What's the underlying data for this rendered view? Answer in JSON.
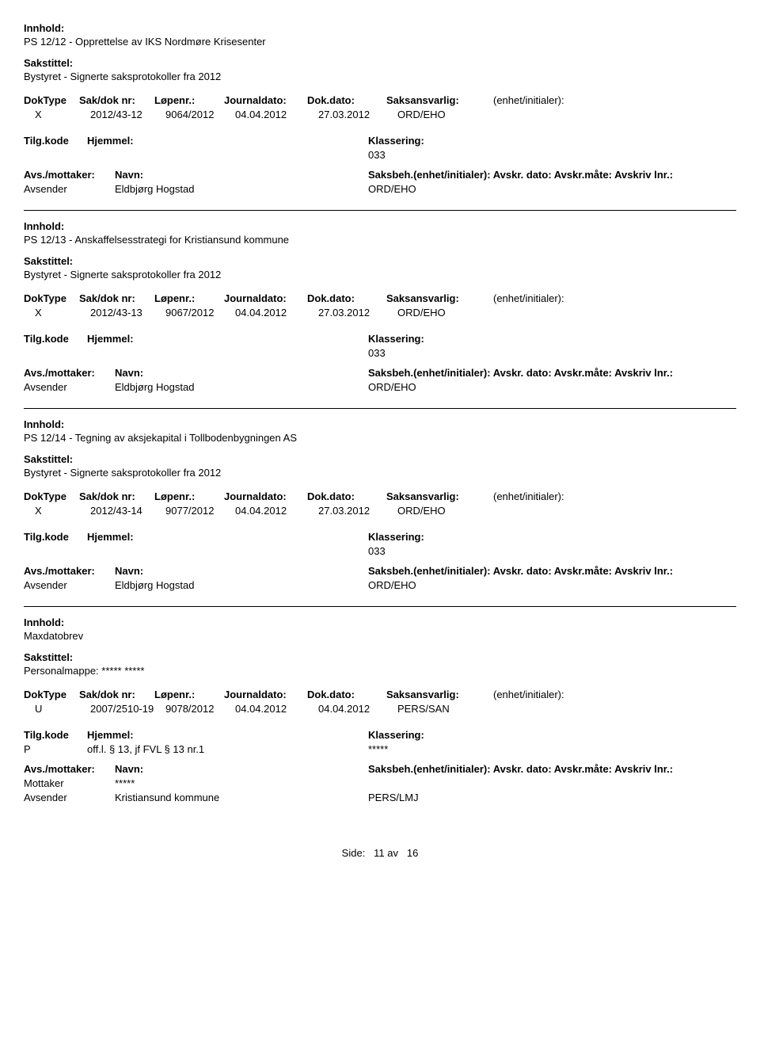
{
  "labels": {
    "innhold": "Innhold:",
    "sakstittel": "Sakstittel:",
    "doktype": "DokType",
    "sakdoknr": "Sak/dok nr:",
    "lopenr": "Løpenr.:",
    "journaldato": "Journaldato:",
    "dokdato": "Dok.dato:",
    "saksansvarlig": "Saksansvarlig:",
    "enhet_init": "(enhet/initialer):",
    "tilgkode": "Tilg.kode",
    "hjemmel": "Hjemmel:",
    "klassering": "Klassering:",
    "avsmottaker": "Avs./mottaker:",
    "navn": "Navn:",
    "saksbeh_line": "Saksbeh.(enhet/initialer): Avskr. dato:  Avskr.måte:  Avskriv lnr.:",
    "side": "Side:",
    "av": "av"
  },
  "records": [
    {
      "innhold": "PS 12/12 - Opprettelse av IKS Nordmøre Krisesenter",
      "sakstittel": "Bystyret - Signerte saksprotokoller fra 2012",
      "doktype": "X",
      "sakdoknr": "2012/43-12",
      "lopenr": "9064/2012",
      "journaldato": "04.04.2012",
      "dokdato": "27.03.2012",
      "saksansvarlig": "ORD/EHO",
      "enhet_init": "",
      "tilgkode": "",
      "hjemmel": "",
      "klassering": "033",
      "parties": [
        {
          "role": "Avsender",
          "name": "Eldbjørg Hogstad",
          "saksbeh": "ORD/EHO"
        }
      ]
    },
    {
      "innhold": "PS 12/13 - Anskaffelsesstrategi for Kristiansund kommune",
      "sakstittel": "Bystyret - Signerte saksprotokoller fra 2012",
      "doktype": "X",
      "sakdoknr": "2012/43-13",
      "lopenr": "9067/2012",
      "journaldato": "04.04.2012",
      "dokdato": "27.03.2012",
      "saksansvarlig": "ORD/EHO",
      "enhet_init": "",
      "tilgkode": "",
      "hjemmel": "",
      "klassering": "033",
      "parties": [
        {
          "role": "Avsender",
          "name": "Eldbjørg Hogstad",
          "saksbeh": "ORD/EHO"
        }
      ]
    },
    {
      "innhold": "PS 12/14 - Tegning av aksjekapital i Tollbodenbygningen AS",
      "sakstittel": "Bystyret - Signerte saksprotokoller fra 2012",
      "doktype": "X",
      "sakdoknr": "2012/43-14",
      "lopenr": "9077/2012",
      "journaldato": "04.04.2012",
      "dokdato": "27.03.2012",
      "saksansvarlig": "ORD/EHO",
      "enhet_init": "",
      "tilgkode": "",
      "hjemmel": "",
      "klassering": "033",
      "parties": [
        {
          "role": "Avsender",
          "name": "Eldbjørg Hogstad",
          "saksbeh": "ORD/EHO"
        }
      ]
    },
    {
      "innhold": "Maxdatobrev",
      "sakstittel": "Personalmappe: ***** *****",
      "doktype": "U",
      "sakdoknr": "2007/2510-19",
      "lopenr": "9078/2012",
      "journaldato": "04.04.2012",
      "dokdato": "04.04.2012",
      "saksansvarlig": "PERS/SAN",
      "enhet_init": "",
      "tilgkode": "P",
      "hjemmel": "off.l. § 13, jf FVL § 13 nr.1",
      "klassering": "*****",
      "parties": [
        {
          "role": "Mottaker",
          "name": "*****",
          "saksbeh": ""
        },
        {
          "role": "Avsender",
          "name": "Kristiansund kommune",
          "saksbeh": "PERS/LMJ"
        }
      ]
    }
  ],
  "page": {
    "current": "11",
    "total": "16"
  }
}
